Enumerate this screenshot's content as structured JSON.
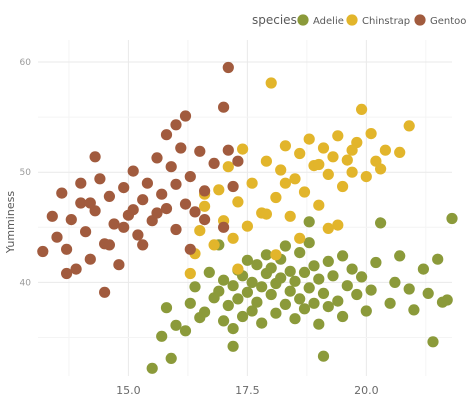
{
  "chart_data": {
    "type": "scatter",
    "title": "",
    "xlabel": "",
    "ylabel": "Yumminess",
    "xlim": [
      13.1,
      21.8
    ],
    "ylim": [
      31.5,
      62.0
    ],
    "x_ticks": [
      15.0,
      17.5,
      20.0
    ],
    "x_tick_labels": [
      "15.0",
      "17.5",
      "20.0"
    ],
    "y_ticks": [
      40,
      50,
      60
    ],
    "y_tick_labels": [
      "40",
      "50",
      "60"
    ],
    "grid": true,
    "legend": {
      "title": "species",
      "position": "top-right",
      "entries": [
        "Adelie",
        "Chinstrap",
        "Gentoo"
      ]
    },
    "series": [
      {
        "name": "Adelie",
        "color": "#8b9a3a",
        "points": [
          [
            15.5,
            32.2
          ],
          [
            15.7,
            35.1
          ],
          [
            15.9,
            33.1
          ],
          [
            15.8,
            37.7
          ],
          [
            16.0,
            36.1
          ],
          [
            16.2,
            35.6
          ],
          [
            16.3,
            38.1
          ],
          [
            16.5,
            36.8
          ],
          [
            16.4,
            39.6
          ],
          [
            16.6,
            37.3
          ],
          [
            16.7,
            40.9
          ],
          [
            16.8,
            38.6
          ],
          [
            16.9,
            39.2
          ],
          [
            17.0,
            36.5
          ],
          [
            17.0,
            40.2
          ],
          [
            17.1,
            37.9
          ],
          [
            17.2,
            39.7
          ],
          [
            17.2,
            35.8
          ],
          [
            17.3,
            41.1
          ],
          [
            17.3,
            38.5
          ],
          [
            17.4,
            40.6
          ],
          [
            17.4,
            36.9
          ],
          [
            17.5,
            39.1
          ],
          [
            17.5,
            42.0
          ],
          [
            17.6,
            37.4
          ],
          [
            17.6,
            40.0
          ],
          [
            17.7,
            41.6
          ],
          [
            17.7,
            38.2
          ],
          [
            17.8,
            39.6
          ],
          [
            17.8,
            36.3
          ],
          [
            17.9,
            40.8
          ],
          [
            17.9,
            42.5
          ],
          [
            18.0,
            38.9
          ],
          [
            18.0,
            41.3
          ],
          [
            18.1,
            37.2
          ],
          [
            18.1,
            39.9
          ],
          [
            18.2,
            42.1
          ],
          [
            18.2,
            40.4
          ],
          [
            18.3,
            38.0
          ],
          [
            18.3,
            43.3
          ],
          [
            18.4,
            41.0
          ],
          [
            18.4,
            39.2
          ],
          [
            18.5,
            36.7
          ],
          [
            18.5,
            40.1
          ],
          [
            18.6,
            42.7
          ],
          [
            18.6,
            38.5
          ],
          [
            18.7,
            40.9
          ],
          [
            18.7,
            37.6
          ],
          [
            18.8,
            39.5
          ],
          [
            18.8,
            43.6
          ],
          [
            18.9,
            41.5
          ],
          [
            18.9,
            38.1
          ],
          [
            19.0,
            40.3
          ],
          [
            19.0,
            36.2
          ],
          [
            19.1,
            39.0
          ],
          [
            19.1,
            33.3
          ],
          [
            19.2,
            41.9
          ],
          [
            19.2,
            37.8
          ],
          [
            19.3,
            40.6
          ],
          [
            19.4,
            38.3
          ],
          [
            19.5,
            42.4
          ],
          [
            19.5,
            36.9
          ],
          [
            19.6,
            39.7
          ],
          [
            19.7,
            41.2
          ],
          [
            19.8,
            38.9
          ],
          [
            19.9,
            40.5
          ],
          [
            20.0,
            37.4
          ],
          [
            20.1,
            39.3
          ],
          [
            20.2,
            41.8
          ],
          [
            20.3,
            45.4
          ],
          [
            20.5,
            38.1
          ],
          [
            20.6,
            40.0
          ],
          [
            20.7,
            42.4
          ],
          [
            20.9,
            39.4
          ],
          [
            21.0,
            37.5
          ],
          [
            21.2,
            41.2
          ],
          [
            21.3,
            39.0
          ],
          [
            21.5,
            42.1
          ],
          [
            21.6,
            38.2
          ],
          [
            21.4,
            34.6
          ],
          [
            21.8,
            45.8
          ],
          [
            21.7,
            38.4
          ],
          [
            17.2,
            34.2
          ],
          [
            16.9,
            43.4
          ],
          [
            18.8,
            45.5
          ]
        ]
      },
      {
        "name": "Chinstrap",
        "color": "#e2b52b",
        "points": [
          [
            16.3,
            40.8
          ],
          [
            16.4,
            42.6
          ],
          [
            16.5,
            44.7
          ],
          [
            16.6,
            46.9
          ],
          [
            16.8,
            43.4
          ],
          [
            16.9,
            48.4
          ],
          [
            17.0,
            45.6
          ],
          [
            17.1,
            50.5
          ],
          [
            17.2,
            44.0
          ],
          [
            17.3,
            47.3
          ],
          [
            17.4,
            52.1
          ],
          [
            17.5,
            45.1
          ],
          [
            17.6,
            49.0
          ],
          [
            17.8,
            46.3
          ],
          [
            17.9,
            51.0
          ],
          [
            18.0,
            58.1
          ],
          [
            18.1,
            47.7
          ],
          [
            18.2,
            50.2
          ],
          [
            18.3,
            52.4
          ],
          [
            18.4,
            46.0
          ],
          [
            18.5,
            49.4
          ],
          [
            18.6,
            51.7
          ],
          [
            18.7,
            48.2
          ],
          [
            18.8,
            53.0
          ],
          [
            18.9,
            50.6
          ],
          [
            19.0,
            47.0
          ],
          [
            19.1,
            52.2
          ],
          [
            19.2,
            49.8
          ],
          [
            19.3,
            51.4
          ],
          [
            19.4,
            53.3
          ],
          [
            19.5,
            48.7
          ],
          [
            19.6,
            51.1
          ],
          [
            19.7,
            50.0
          ],
          [
            19.8,
            52.7
          ],
          [
            19.9,
            55.7
          ],
          [
            20.0,
            49.6
          ],
          [
            20.1,
            53.5
          ],
          [
            20.2,
            51.0
          ],
          [
            20.4,
            52.0
          ],
          [
            20.7,
            51.8
          ],
          [
            20.9,
            54.2
          ],
          [
            18.1,
            42.5
          ],
          [
            19.4,
            45.2
          ],
          [
            18.6,
            44.0
          ],
          [
            19.2,
            44.9
          ],
          [
            17.3,
            41.2
          ],
          [
            16.6,
            48.0
          ],
          [
            17.9,
            46.2
          ],
          [
            18.3,
            49.0
          ],
          [
            19.0,
            50.7
          ],
          [
            19.7,
            52.0
          ],
          [
            20.3,
            50.3
          ]
        ]
      },
      {
        "name": "Gentoo",
        "color": "#a15b3e",
        "points": [
          [
            13.2,
            42.8
          ],
          [
            13.4,
            46.0
          ],
          [
            13.5,
            44.1
          ],
          [
            13.6,
            48.1
          ],
          [
            13.7,
            43.0
          ],
          [
            13.8,
            45.7
          ],
          [
            13.9,
            41.2
          ],
          [
            14.0,
            47.2
          ],
          [
            14.1,
            44.6
          ],
          [
            14.2,
            42.1
          ],
          [
            14.3,
            46.5
          ],
          [
            14.4,
            49.4
          ],
          [
            14.5,
            43.5
          ],
          [
            14.6,
            47.8
          ],
          [
            14.7,
            45.3
          ],
          [
            14.8,
            41.6
          ],
          [
            14.9,
            48.6
          ],
          [
            15.0,
            46.1
          ],
          [
            15.1,
            50.1
          ],
          [
            15.2,
            44.3
          ],
          [
            15.3,
            47.5
          ],
          [
            15.4,
            49.0
          ],
          [
            15.5,
            45.6
          ],
          [
            15.6,
            51.3
          ],
          [
            15.7,
            48.0
          ],
          [
            15.8,
            46.7
          ],
          [
            15.9,
            50.5
          ],
          [
            16.0,
            48.9
          ],
          [
            16.1,
            52.2
          ],
          [
            16.2,
            47.1
          ],
          [
            16.3,
            49.6
          ],
          [
            16.4,
            46.4
          ],
          [
            16.5,
            51.9
          ],
          [
            16.6,
            48.3
          ],
          [
            16.8,
            50.8
          ],
          [
            17.0,
            45.0
          ],
          [
            17.1,
            52.0
          ],
          [
            17.2,
            48.7
          ],
          [
            17.1,
            59.5
          ],
          [
            17.0,
            55.9
          ],
          [
            17.3,
            51.0
          ],
          [
            16.0,
            54.3
          ],
          [
            15.8,
            53.4
          ],
          [
            16.2,
            55.1
          ],
          [
            14.3,
            51.4
          ],
          [
            14.0,
            49.0
          ],
          [
            14.6,
            43.4
          ],
          [
            14.9,
            45.0
          ],
          [
            15.3,
            43.4
          ],
          [
            15.6,
            46.3
          ],
          [
            16.0,
            44.8
          ],
          [
            16.3,
            43.0
          ],
          [
            16.6,
            45.7
          ],
          [
            14.5,
            39.1
          ],
          [
            13.7,
            40.8
          ],
          [
            15.1,
            46.6
          ],
          [
            14.2,
            47.2
          ]
        ]
      }
    ]
  }
}
